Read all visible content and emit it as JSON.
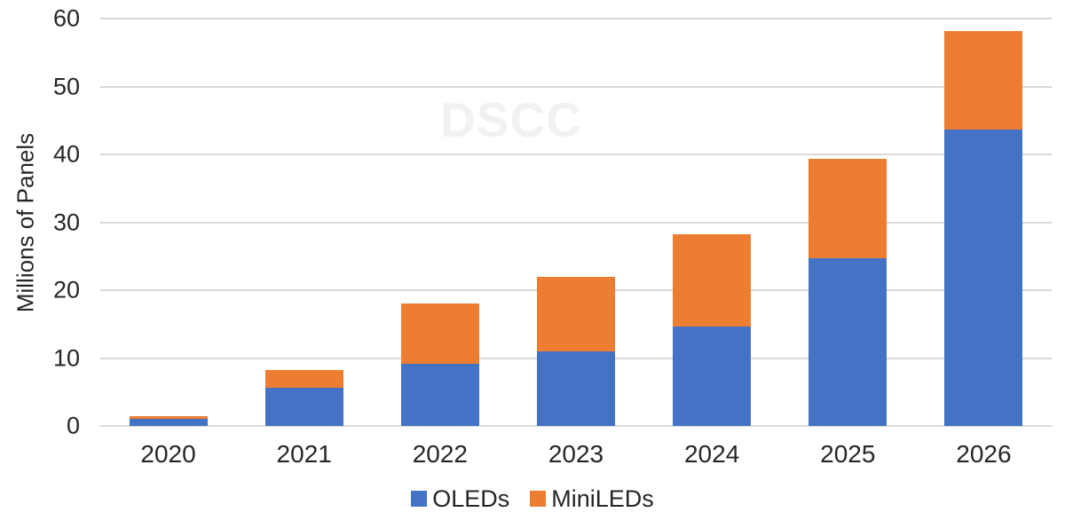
{
  "chart_data": {
    "type": "bar",
    "stacked": true,
    "watermark": "DSCC",
    "ylabel": "Millions of Panels",
    "xlabel": "",
    "ylim": [
      0,
      60
    ],
    "yticks": [
      0,
      10,
      20,
      30,
      40,
      50,
      60
    ],
    "grid": true,
    "legend_position": "bottom",
    "categories": [
      "2020",
      "2021",
      "2022",
      "2023",
      "2024",
      "2025",
      "2026"
    ],
    "series": [
      {
        "name": "OLEDs",
        "color": "#4472C4",
        "values": [
          1.1,
          5.6,
          9.2,
          11.0,
          14.7,
          24.7,
          43.7
        ]
      },
      {
        "name": "MiniLEDs",
        "color": "#ED7D31",
        "values": [
          0.3,
          2.6,
          8.8,
          10.9,
          13.5,
          14.7,
          14.5
        ]
      }
    ]
  },
  "colors": {
    "background": "#FFFFFF",
    "gridline": "#D9D9D9",
    "axis_text": "#262626",
    "watermark": "#F1F1F1",
    "oled_blue": "#4472C4",
    "miniled_orange": "#ED7D31"
  }
}
